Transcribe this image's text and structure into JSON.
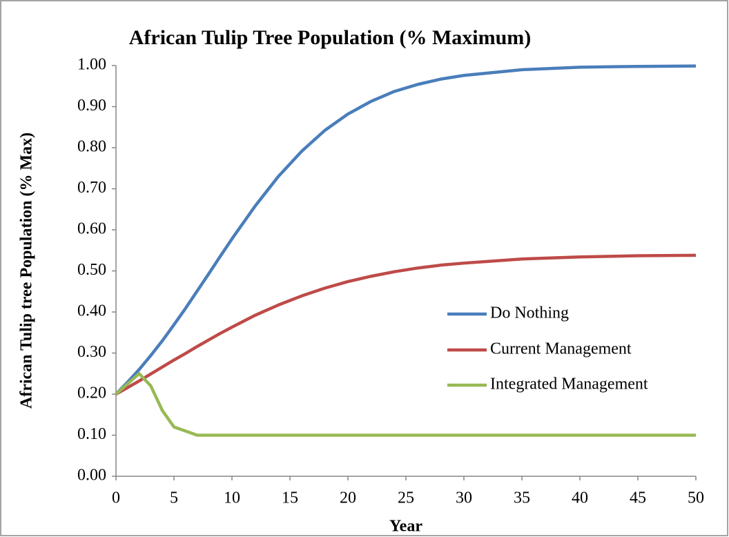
{
  "chart_data": {
    "type": "line",
    "title": "African Tulip Tree Population (% Maximum)",
    "x_label": "Year",
    "y_label": "African Tulip tree Population (% Max)",
    "x": [
      0,
      1,
      2,
      3,
      4,
      5,
      6,
      7,
      8,
      9,
      10,
      12,
      14,
      16,
      18,
      20,
      22,
      24,
      26,
      28,
      30,
      35,
      40,
      45,
      50
    ],
    "series": [
      {
        "name": "Do Nothing",
        "color": "#4a7ebb",
        "values": [
          0.2,
          0.229,
          0.26,
          0.294,
          0.33,
          0.369,
          0.409,
          0.451,
          0.493,
          0.536,
          0.578,
          0.658,
          0.73,
          0.791,
          0.842,
          0.882,
          0.913,
          0.937,
          0.954,
          0.967,
          0.976,
          0.99,
          0.996,
          0.998,
          0.999
        ]
      },
      {
        "name": "Current Management",
        "color": "#be4b48",
        "values": [
          0.2,
          0.216,
          0.232,
          0.249,
          0.266,
          0.283,
          0.299,
          0.316,
          0.332,
          0.348,
          0.363,
          0.392,
          0.417,
          0.439,
          0.458,
          0.474,
          0.487,
          0.498,
          0.507,
          0.514,
          0.519,
          0.529,
          0.534,
          0.537,
          0.538
        ]
      },
      {
        "name": "Integrated Management",
        "color": "#98b954",
        "values": [
          0.2,
          0.225,
          0.25,
          0.22,
          0.16,
          0.12,
          0.11,
          0.1,
          0.1,
          0.1,
          0.1,
          0.1,
          0.1,
          0.1,
          0.1,
          0.1,
          0.1,
          0.1,
          0.1,
          0.1,
          0.1,
          0.1,
          0.1,
          0.1,
          0.1
        ]
      }
    ],
    "xlim": [
      0,
      50
    ],
    "xticks": [
      0,
      5,
      10,
      15,
      20,
      25,
      30,
      35,
      40,
      45,
      50
    ],
    "ylim": [
      0,
      1
    ],
    "yticks": [
      {
        "value": 0,
        "label": "0.00"
      },
      {
        "value": 0.1,
        "label": "0.10"
      },
      {
        "value": 0.2,
        "label": "0.20"
      },
      {
        "value": 0.3,
        "label": "0.30"
      },
      {
        "value": 0.4,
        "label": "0.40"
      },
      {
        "value": 0.5,
        "label": "0.50"
      },
      {
        "value": 0.6,
        "label": "0.60"
      },
      {
        "value": 0.7,
        "label": "0.70"
      },
      {
        "value": 0.8,
        "label": "0.80"
      },
      {
        "value": 0.9,
        "label": "0.90"
      },
      {
        "value": 1,
        "label": "1.00"
      }
    ],
    "grid": false,
    "legend": "right"
  }
}
